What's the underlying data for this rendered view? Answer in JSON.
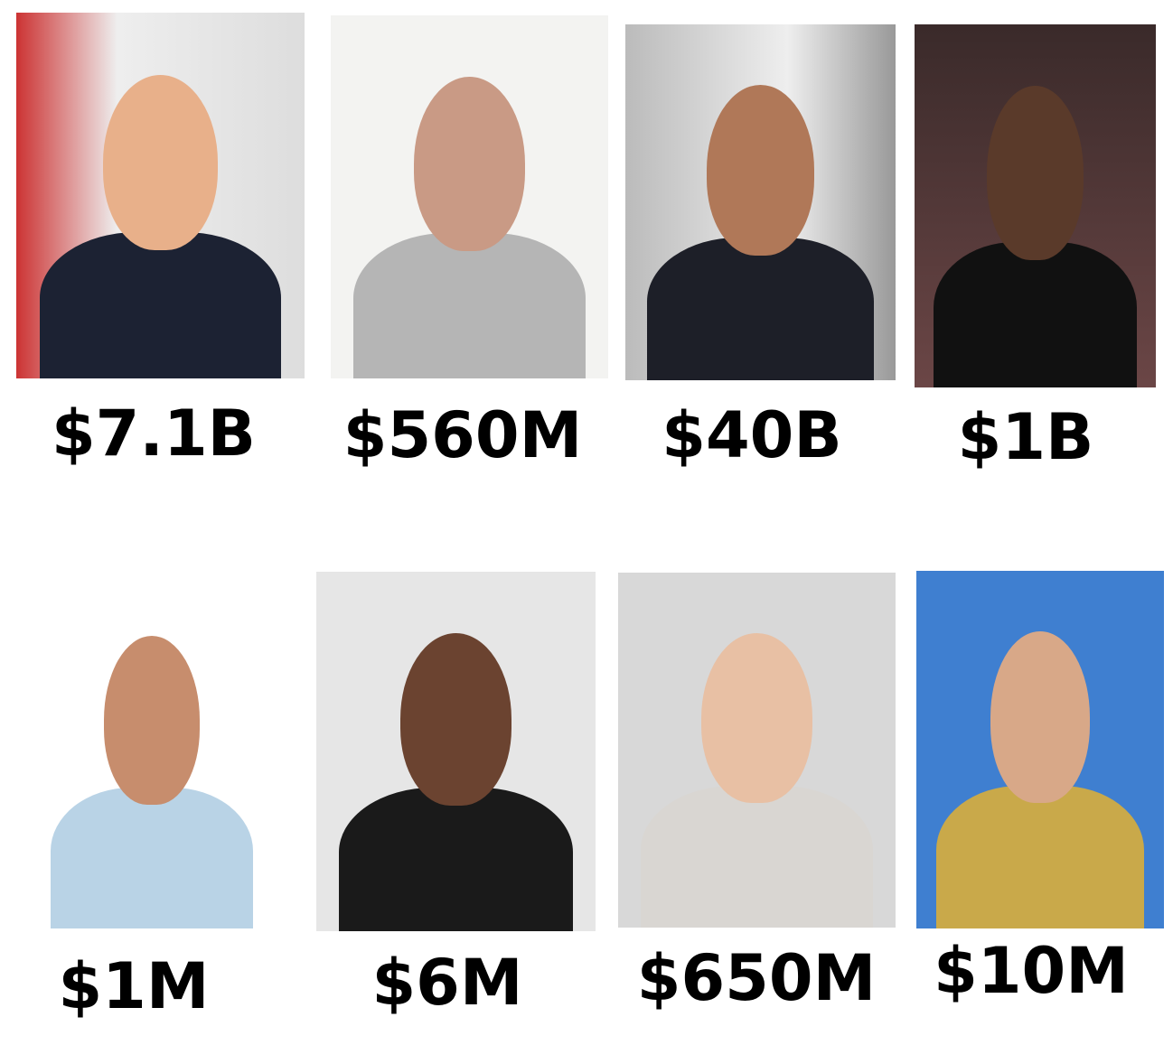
{
  "items": [
    {
      "label": "$7.1B"
    },
    {
      "label": "$560M"
    },
    {
      "label": "$40B"
    },
    {
      "label": "$1B"
    },
    {
      "label": "$1M"
    },
    {
      "label": "$6M"
    },
    {
      "label": "$650M"
    },
    {
      "label": "$10M"
    }
  ]
}
